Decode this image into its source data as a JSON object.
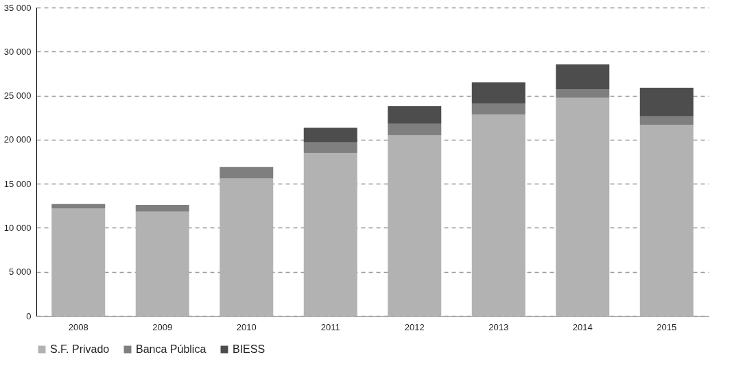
{
  "chart_data": {
    "type": "bar",
    "stacked": true,
    "categories": [
      "2008",
      "2009",
      "2010",
      "2011",
      "2012",
      "2013",
      "2014",
      "2015"
    ],
    "series": [
      {
        "name": "S.F. Privado",
        "color": "#b2b2b2",
        "values": [
          12200,
          11850,
          15600,
          18500,
          20500,
          22850,
          24750,
          21700
        ]
      },
      {
        "name": "Banca Pública",
        "color": "#7f7f7f",
        "values": [
          500,
          750,
          1300,
          1200,
          1300,
          1250,
          1000,
          950
        ]
      },
      {
        "name": "BIESS",
        "color": "#4d4d4d",
        "values": [
          0,
          0,
          0,
          1650,
          2000,
          2400,
          2800,
          3250
        ]
      }
    ],
    "ylim": [
      0,
      35000
    ],
    "yticks": [
      0,
      {
        "value": 5000,
        "label": "5 000"
      },
      {
        "value": 10000,
        "label": "10 000"
      },
      {
        "value": 15000,
        "label": "15 000"
      },
      {
        "value": 20000,
        "label": "20 000"
      },
      {
        "value": 25000,
        "label": "25 000"
      },
      {
        "value": 30000,
        "label": "30 000"
      },
      {
        "value": 35000,
        "label": "35 000"
      }
    ],
    "grid": "y",
    "legend": "bottom"
  }
}
